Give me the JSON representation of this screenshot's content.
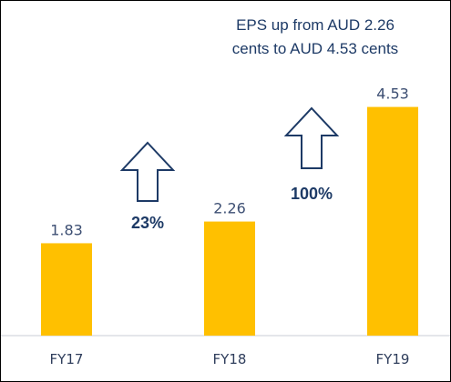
{
  "chart_data": {
    "type": "bar",
    "title": "EPS up from  AUD 2.26 cents to  AUD 4.53 cents",
    "title_lines": [
      "EPS up from  AUD 2.26",
      "cents to  AUD 4.53 cents"
    ],
    "categories": [
      "FY17",
      "FY18",
      "FY19"
    ],
    "values": [
      1.83,
      2.26,
      4.53
    ],
    "value_labels": [
      "1.83",
      "2.26",
      "4.53"
    ],
    "ylim": [
      0,
      5
    ],
    "bar_color": "#ffc000",
    "grid": false,
    "annotations": [
      {
        "between": [
          "FY17",
          "FY18"
        ],
        "text": "23%",
        "icon": "up-arrow-icon"
      },
      {
        "between": [
          "FY18",
          "FY19"
        ],
        "text": "100%",
        "icon": "up-arrow-icon"
      }
    ]
  }
}
